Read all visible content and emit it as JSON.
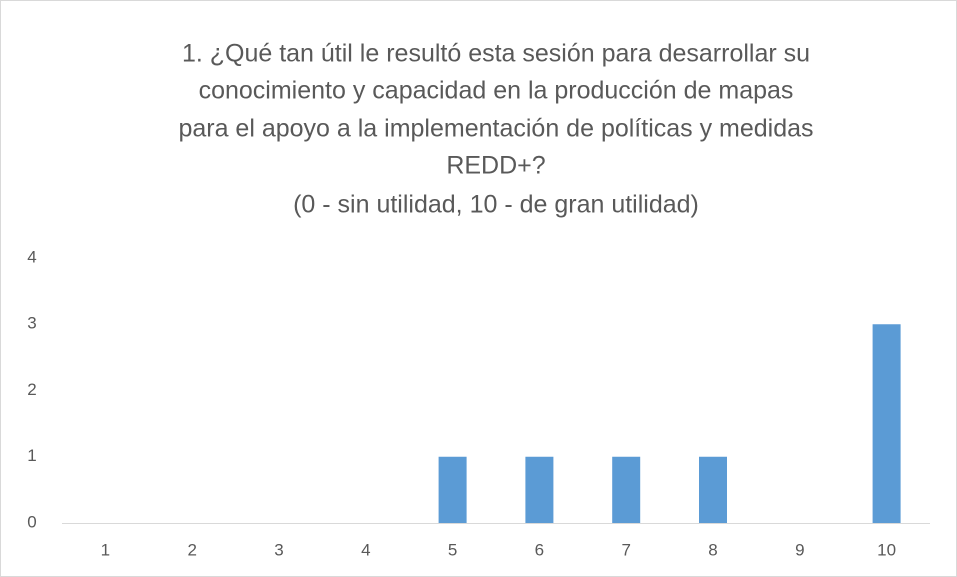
{
  "chart_data": {
    "type": "bar",
    "title": [
      "1. ¿Qué tan útil le resultó esta sesión para desarrollar su",
      "conocimiento y capacidad en la producción de mapas",
      "para el apoyo a la implementación de políticas y medidas",
      "REDD+?"
    ],
    "subtitle": "(0 - sin utilidad, 10 - de gran utilidad)",
    "categories": [
      "1",
      "2",
      "3",
      "4",
      "5",
      "6",
      "7",
      "8",
      "9",
      "10"
    ],
    "values": [
      0,
      0,
      0,
      0,
      1,
      1,
      1,
      1,
      0,
      3
    ],
    "color": "#5b9bd5",
    "ylim": [
      0,
      4
    ],
    "yticks": [
      0,
      1,
      2,
      3,
      4
    ],
    "grid": false
  }
}
